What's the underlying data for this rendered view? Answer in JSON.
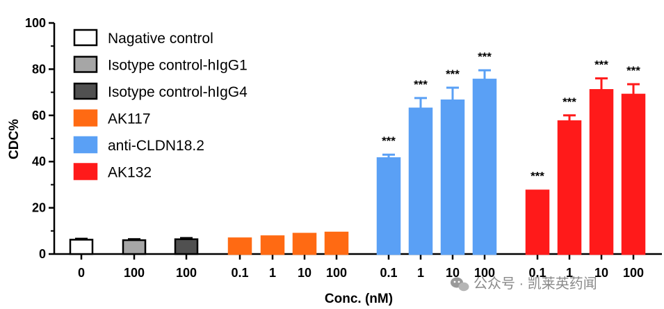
{
  "chart_data": {
    "type": "bar",
    "ylabel": "CDC%",
    "xlabel": "Conc. (nM)",
    "ylim": [
      0,
      100
    ],
    "yticks": [
      0,
      20,
      40,
      60,
      80,
      100
    ],
    "legend_placement": "top-left",
    "series": [
      {
        "name": "Nagative control",
        "color": "#ffffff",
        "categories": [
          "0"
        ],
        "values": [
          6.2
        ],
        "errors": [
          0.4
        ],
        "significance": [
          ""
        ]
      },
      {
        "name": "Isotype control-hIgG1",
        "color": "#a6a6a6",
        "categories": [
          "100"
        ],
        "values": [
          6.0
        ],
        "errors": [
          0.4
        ],
        "significance": [
          ""
        ]
      },
      {
        "name": "Isotype control-hIgG4",
        "color": "#505050",
        "categories": [
          "100"
        ],
        "values": [
          6.4
        ],
        "errors": [
          0.5
        ],
        "significance": [
          ""
        ]
      },
      {
        "name": "AK117",
        "color": "#ff6a13",
        "categories": [
          "0.1",
          "1",
          "10",
          "100"
        ],
        "values": [
          6.8,
          7.7,
          8.8,
          9.3
        ],
        "errors": [
          0.3,
          0.3,
          0.3,
          0.3
        ],
        "significance": [
          "",
          "",
          "",
          ""
        ]
      },
      {
        "name": "anti-CLDN18.2",
        "color": "#5aa0f5",
        "categories": [
          "0.1",
          "1",
          "10",
          "100"
        ],
        "values": [
          41.5,
          63.0,
          66.5,
          75.5
        ],
        "errors": [
          1.5,
          4.5,
          5.5,
          4.0
        ],
        "significance": [
          "***",
          "***",
          "***",
          "***"
        ]
      },
      {
        "name": "AK132",
        "color": "#ff1a1a",
        "categories": [
          "0.1",
          "1",
          "10",
          "100"
        ],
        "values": [
          27.5,
          57.5,
          71.0,
          69.0
        ],
        "errors": [
          0.3,
          2.5,
          5.0,
          4.5
        ],
        "significance": [
          "***",
          "***",
          "***",
          "***"
        ]
      }
    ]
  },
  "watermark": {
    "text": "公众号 · 凯莱英药闻",
    "icon": "wechat-icon"
  }
}
